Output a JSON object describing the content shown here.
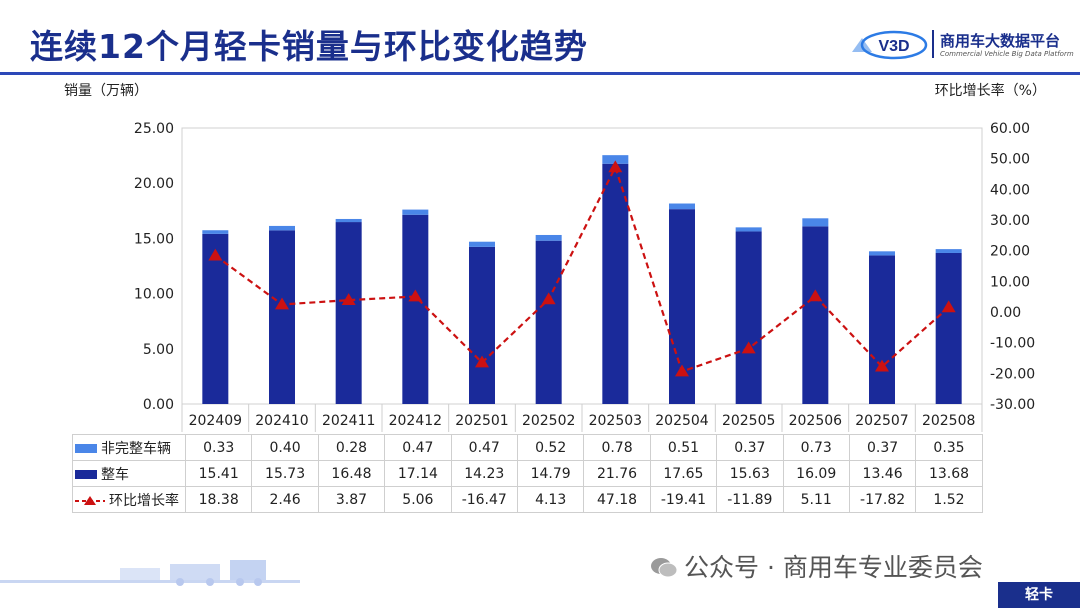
{
  "header": {
    "title": "连续12个月轻卡销量与环比变化趋势",
    "logo_mark": "V3D",
    "logo_name": "商用车大数据平台",
    "logo_sub": "Commercial Vehicle Big Data Platform"
  },
  "axes": {
    "left_title": "销量（万辆）",
    "right_title": "环比增长率（%）"
  },
  "chart_data": {
    "type": "bar",
    "stacked": true,
    "categories": [
      "202409",
      "202410",
      "202411",
      "202412",
      "202501",
      "202502",
      "202503",
      "202504",
      "202505",
      "202506",
      "202507",
      "202508"
    ],
    "series": [
      {
        "name": "整车",
        "type": "bar",
        "axis": "left",
        "color": "#1a2a9a",
        "values": [
          15.41,
          15.73,
          16.48,
          17.14,
          14.23,
          14.79,
          21.76,
          17.65,
          15.63,
          16.09,
          13.46,
          13.68
        ]
      },
      {
        "name": "非完整车辆",
        "type": "bar",
        "axis": "left",
        "color": "#4a86e8",
        "values": [
          0.33,
          0.4,
          0.28,
          0.47,
          0.47,
          0.52,
          0.78,
          0.51,
          0.37,
          0.73,
          0.37,
          0.35
        ]
      },
      {
        "name": "环比增长率",
        "type": "line",
        "axis": "right",
        "color": "#cc1111",
        "style": "dashed",
        "marker": "triangle",
        "values": [
          18.38,
          2.46,
          3.87,
          5.06,
          -16.47,
          4.13,
          47.18,
          -19.41,
          -11.89,
          5.11,
          -17.82,
          1.52
        ]
      }
    ],
    "ylim_left": [
      0,
      25
    ],
    "left_ticks": [
      "0.00",
      "5.00",
      "10.00",
      "15.00",
      "20.00",
      "25.00"
    ],
    "ylim_right": [
      -30,
      60
    ],
    "right_ticks": [
      "-30.00",
      "-20.00",
      "-10.00",
      "0.00",
      "10.00",
      "20.00",
      "30.00",
      "40.00",
      "50.00",
      "60.00"
    ],
    "data_table": true
  },
  "table": {
    "rows": [
      {
        "label": "非完整车辆",
        "values": [
          "0.33",
          "0.40",
          "0.28",
          "0.47",
          "0.47",
          "0.52",
          "0.78",
          "0.51",
          "0.37",
          "0.73",
          "0.37",
          "0.35"
        ]
      },
      {
        "label": "整车",
        "values": [
          "15.41",
          "15.73",
          "16.48",
          "17.14",
          "14.23",
          "14.79",
          "21.76",
          "17.65",
          "15.63",
          "16.09",
          "13.46",
          "13.68"
        ]
      },
      {
        "label": "环比增长率",
        "values": [
          "18.38",
          "2.46",
          "3.87",
          "5.06",
          "-16.47",
          "4.13",
          "47.18",
          "-19.41",
          "-11.89",
          "5.11",
          "-17.82",
          "1.52"
        ]
      }
    ]
  },
  "footer": {
    "wechat": "公众号 · 商用车专业委员会",
    "tag": "轻卡"
  }
}
